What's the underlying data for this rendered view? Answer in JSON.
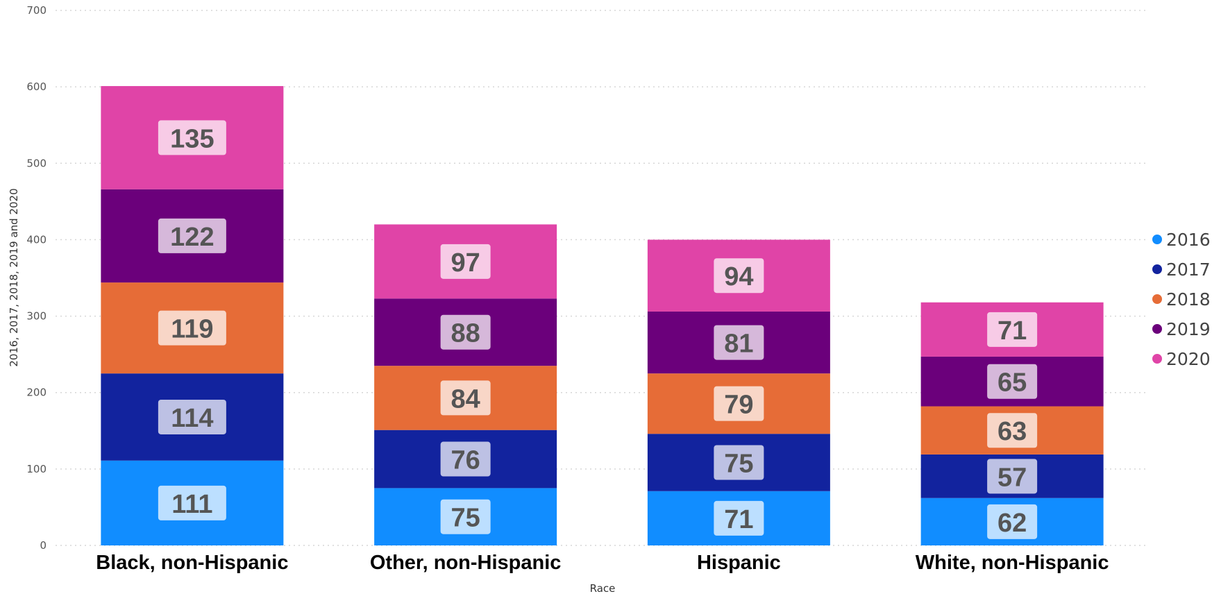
{
  "chart_data": {
    "type": "bar",
    "stacked": true,
    "categories": [
      "Black, non-Hispanic",
      "Other, non-Hispanic",
      "Hispanic",
      "White, non-Hispanic"
    ],
    "series": [
      {
        "name": "2016",
        "color": "#118DFF",
        "values": [
          111,
          75,
          71,
          62
        ]
      },
      {
        "name": "2017",
        "color": "#12239E",
        "values": [
          114,
          76,
          75,
          57
        ]
      },
      {
        "name": "2018",
        "color": "#E66C37",
        "values": [
          119,
          84,
          79,
          63
        ]
      },
      {
        "name": "2019",
        "color": "#6B007B",
        "values": [
          122,
          88,
          81,
          65
        ]
      },
      {
        "name": "2020",
        "color": "#E044A7",
        "values": [
          135,
          97,
          94,
          71
        ]
      }
    ],
    "xlabel": "Race",
    "ylabel": "2016, 2017, 2018, 2019 and 2020",
    "ylim": [
      0,
      700
    ],
    "yticks": [
      0,
      100,
      200,
      300,
      400,
      500,
      600,
      700
    ],
    "grid": true,
    "legend_position": "right"
  }
}
